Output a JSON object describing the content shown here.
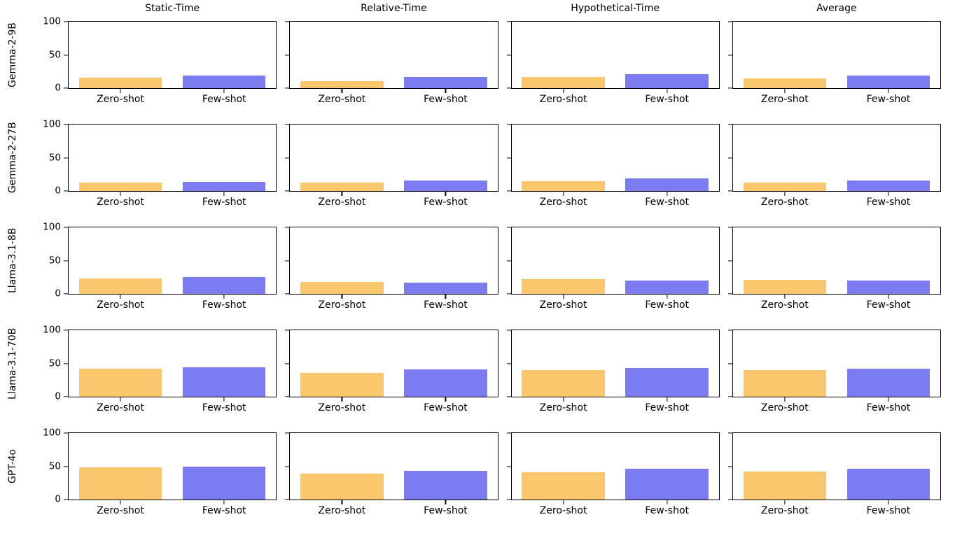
{
  "figure": {
    "background": "#ffffff"
  },
  "chart_data": {
    "type": "bar",
    "layout": "grid-of-subplots",
    "grid": {
      "rows": 5,
      "cols": 4
    },
    "col_titles": [
      "Static-Time",
      "Relative-Time",
      "Hypothetical-Time",
      "Average"
    ],
    "row_labels": [
      "Gemma-2-9B",
      "Gemma-2-27B",
      "Llama-3.1-8B",
      "Llama-3.1-70B",
      "GPT-4o"
    ],
    "categories": [
      "Zero-shot",
      "Few-shot"
    ],
    "ylim": [
      0,
      100
    ],
    "yticks": [
      0,
      50,
      100
    ],
    "legend": "none",
    "series_colors": {
      "zero_shot": "#FAC76E",
      "few_shot": "#7C7CF0"
    },
    "values": [
      {
        "model": "Gemma-2-9B",
        "cells": [
          [
            16,
            19
          ],
          [
            11,
            17
          ],
          [
            17,
            21
          ],
          [
            15,
            19
          ]
        ]
      },
      {
        "model": "Gemma-2-27B",
        "cells": [
          [
            13,
            14
          ],
          [
            13,
            16
          ],
          [
            15,
            19
          ],
          [
            13,
            16
          ]
        ]
      },
      {
        "model": "Llama-3.1-8B",
        "cells": [
          [
            23,
            25
          ],
          [
            18,
            17
          ],
          [
            22,
            20
          ],
          [
            21,
            20
          ]
        ]
      },
      {
        "model": "Llama-3.1-70B",
        "cells": [
          [
            42,
            44
          ],
          [
            36,
            41
          ],
          [
            40,
            43
          ],
          [
            40,
            42
          ]
        ]
      },
      {
        "model": "GPT-4o",
        "cells": [
          [
            48,
            50
          ],
          [
            39,
            43
          ],
          [
            41,
            46
          ],
          [
            42,
            46
          ]
        ]
      }
    ]
  }
}
